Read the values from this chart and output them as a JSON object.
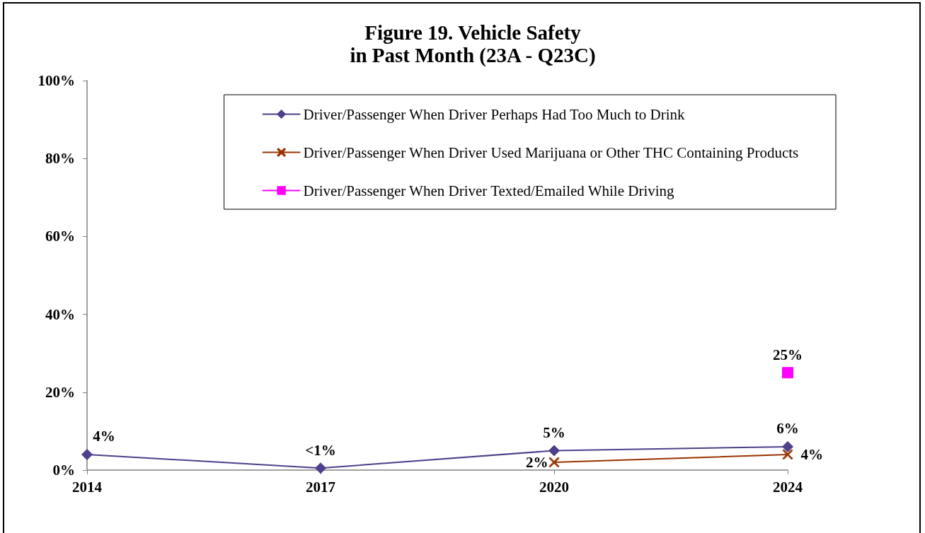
{
  "chart_data": {
    "type": "line",
    "title": "Figure 19. Vehicle Safety",
    "subtitle": "in Past Month (23A - Q23C)",
    "categories": [
      "2014",
      "2017",
      "2020",
      "2024"
    ],
    "series": [
      {
        "name": "Driver/Passenger When Driver Perhaps Had Too Much to Drink",
        "color": "#4f3f8a",
        "marker": "diamond",
        "values": [
          4,
          0.5,
          5,
          6
        ],
        "value_labels": [
          "4%",
          "<1%",
          "5%",
          "6%"
        ]
      },
      {
        "name": "Driver/Passenger When Driver Used Marijuana or Other THC Containing Products",
        "color": "#993300",
        "marker": "cross",
        "values": [
          null,
          null,
          2,
          4
        ],
        "value_labels": [
          null,
          null,
          "2%",
          "4%"
        ]
      },
      {
        "name": "Driver/Passenger When Driver Texted/Emailed While Driving",
        "color": "#ff00ff",
        "marker": "square",
        "values": [
          null,
          null,
          null,
          25
        ],
        "value_labels": [
          null,
          null,
          null,
          "25%"
        ]
      }
    ],
    "ylim": [
      0,
      100
    ],
    "yticks": [
      {
        "value": 0,
        "label": "0%"
      },
      {
        "value": 20,
        "label": "20%"
      },
      {
        "value": 40,
        "label": "40%"
      },
      {
        "value": 60,
        "label": "60%"
      },
      {
        "value": 80,
        "label": "80%"
      },
      {
        "value": 100,
        "label": "100%"
      }
    ],
    "grid": false,
    "legend": "top right",
    "line_style": "solid"
  }
}
